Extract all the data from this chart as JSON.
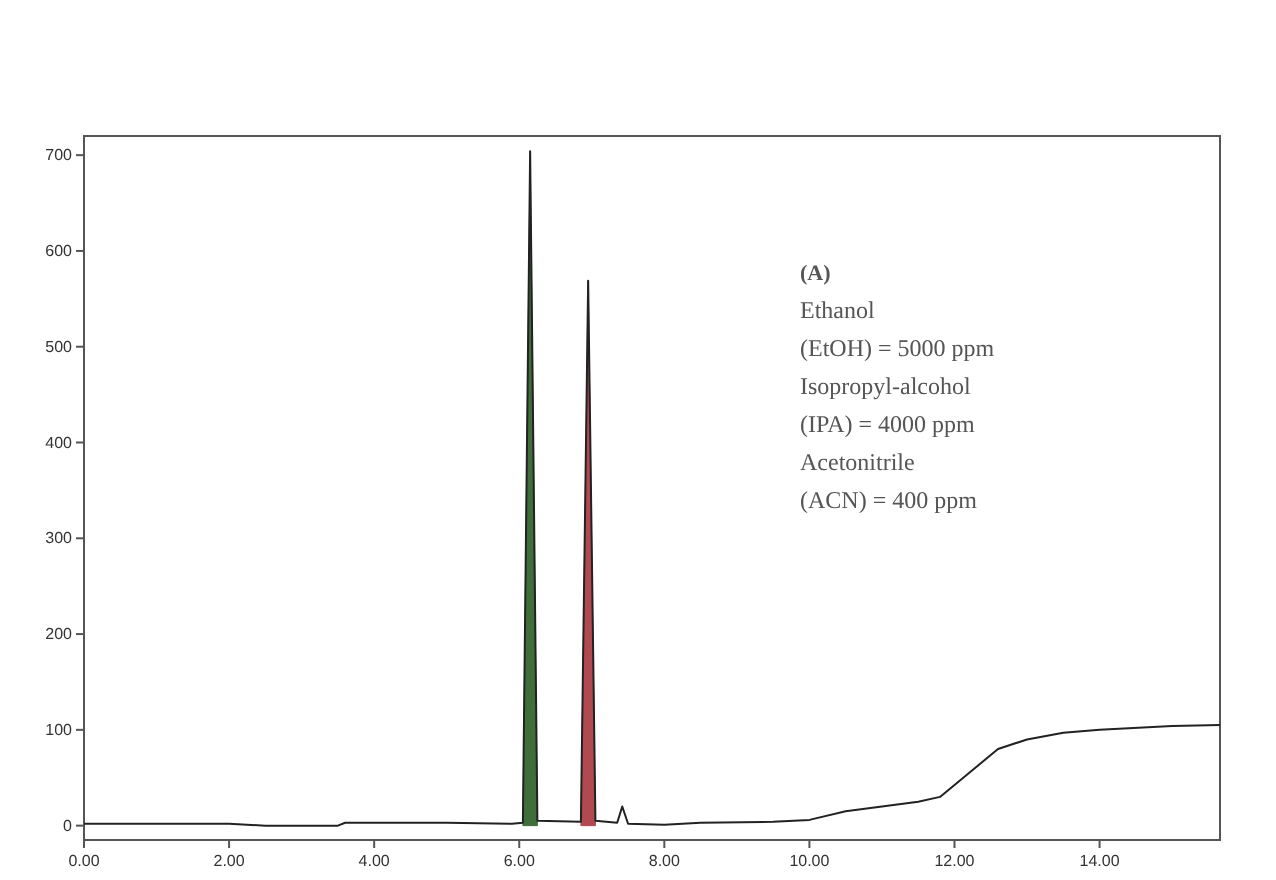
{
  "chart_data": {
    "type": "line",
    "xlim": [
      0,
      15.66
    ],
    "ylim": [
      -15,
      720
    ],
    "xticks": [
      {
        "value": 0,
        "label": "0.00"
      },
      {
        "value": 2,
        "label": "2.00"
      },
      {
        "value": 4,
        "label": "4.00"
      },
      {
        "value": 6,
        "label": "6.00"
      },
      {
        "value": 8,
        "label": "8.00"
      },
      {
        "value": 10,
        "label": "10.00"
      },
      {
        "value": 12,
        "label": "12.00"
      },
      {
        "value": 14,
        "label": "14.00"
      }
    ],
    "yticks": [
      0,
      100,
      200,
      300,
      400,
      500,
      600,
      700
    ],
    "series": [
      {
        "type": "area",
        "color": "#3f6e3a",
        "x": [
          6.05,
          6.15,
          6.25
        ],
        "values": [
          0,
          704,
          0
        ]
      },
      {
        "type": "area",
        "color": "#b04a50",
        "x": [
          6.85,
          6.95,
          7.05
        ],
        "values": [
          0,
          569,
          0
        ]
      },
      {
        "color": "#222222",
        "x": [
          0,
          2,
          2.5,
          3.5,
          3.6,
          5,
          5.9,
          6.05,
          6.15,
          6.25,
          6.85,
          6.95,
          7.05,
          7.35,
          7.42,
          7.5,
          8,
          8.5,
          9.5,
          10,
          10.5,
          11.5,
          11.8,
          12.2,
          12.6,
          13,
          13.5,
          14,
          15,
          15.66
        ],
        "values": [
          2,
          2,
          0,
          0,
          3,
          3,
          2,
          3,
          704,
          5,
          4,
          569,
          5,
          3,
          20,
          2,
          1,
          3,
          4,
          6,
          15,
          25,
          30,
          55,
          80,
          90,
          97,
          100,
          104,
          105
        ]
      }
    ],
    "annotations": [
      "(A)",
      "Ethanol",
      "(EtOH) = 5000 ppm",
      "Isopropyl-alcohol",
      "(IPA) = 4000 ppm",
      "Acetonitrile",
      "(ACN) = 400 ppm"
    ]
  }
}
